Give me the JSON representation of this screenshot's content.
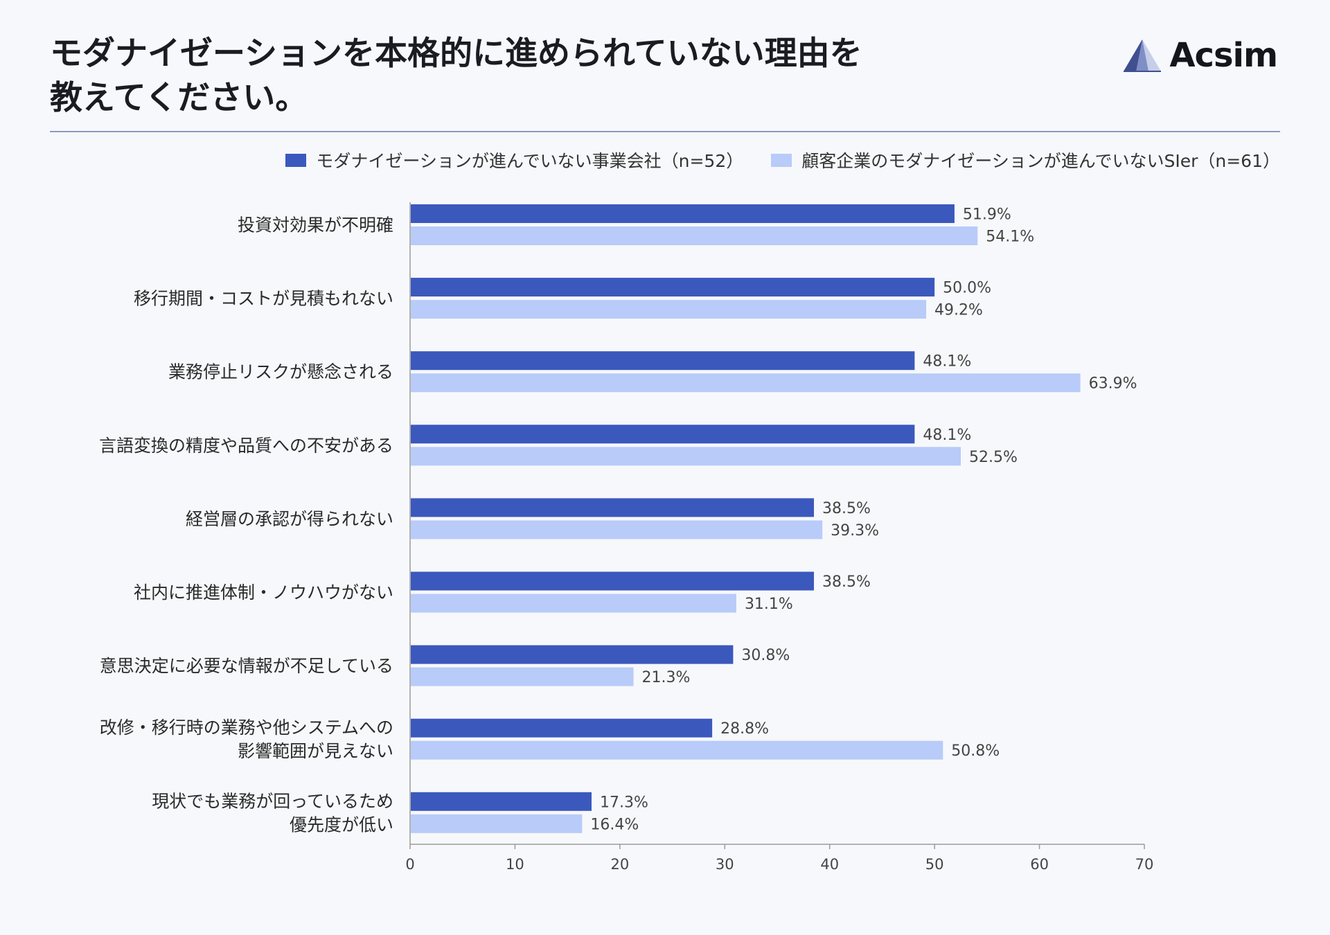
{
  "header": {
    "title_lines": [
      "モダナイゼーションを本格的に進められていない理由を",
      "教えてください。"
    ],
    "logo_text": "Acsim",
    "logo_icon": "triangle-logo-icon"
  },
  "colors": {
    "series1": "#3b58bd",
    "series2": "#b8cbf9",
    "axis": "#9a9a9a"
  },
  "chart_data": {
    "type": "bar",
    "orientation": "horizontal",
    "categories": [
      [
        "投資対効果が不明確"
      ],
      [
        "移行期間・コストが見積もれない"
      ],
      [
        "業務停止リスクが懸念される"
      ],
      [
        "言語変換の精度や品質への不安がある"
      ],
      [
        "経営層の承認が得られない"
      ],
      [
        "社内に推進体制・ノウハウがない"
      ],
      [
        "意思決定に必要な情報が不足している"
      ],
      [
        "改修・移行時の業務や他システムへの",
        "影響範囲が見えない"
      ],
      [
        "現状でも業務が回っているため",
        "優先度が低い"
      ]
    ],
    "series": [
      {
        "name": "モダナイゼーションが進んでいない事業会社（n=52）",
        "values": [
          51.9,
          50.0,
          48.1,
          48.1,
          38.5,
          38.5,
          30.8,
          28.8,
          17.3
        ],
        "labels": [
          "51.9%",
          "50.0%",
          "48.1%",
          "48.1%",
          "38.5%",
          "38.5%",
          "30.8%",
          "28.8%",
          "17.3%"
        ]
      },
      {
        "name": "顧客企業のモダナイゼーションが進んでいないSIer（n=61）",
        "values": [
          54.1,
          49.2,
          63.9,
          52.5,
          39.3,
          31.1,
          21.3,
          50.8,
          16.4
        ],
        "labels": [
          "54.1%",
          "49.2%",
          "63.9%",
          "52.5%",
          "39.3%",
          "31.1%",
          "21.3%",
          "50.8%",
          "16.4%"
        ]
      }
    ],
    "xlim": [
      0,
      70
    ],
    "xticks": [
      0,
      10,
      20,
      30,
      40,
      50,
      60,
      70
    ],
    "xtick_labels": [
      "0",
      "10",
      "20",
      "30",
      "40",
      "50",
      "60",
      "70"
    ],
    "legend_position": "top-right",
    "grid": false
  }
}
